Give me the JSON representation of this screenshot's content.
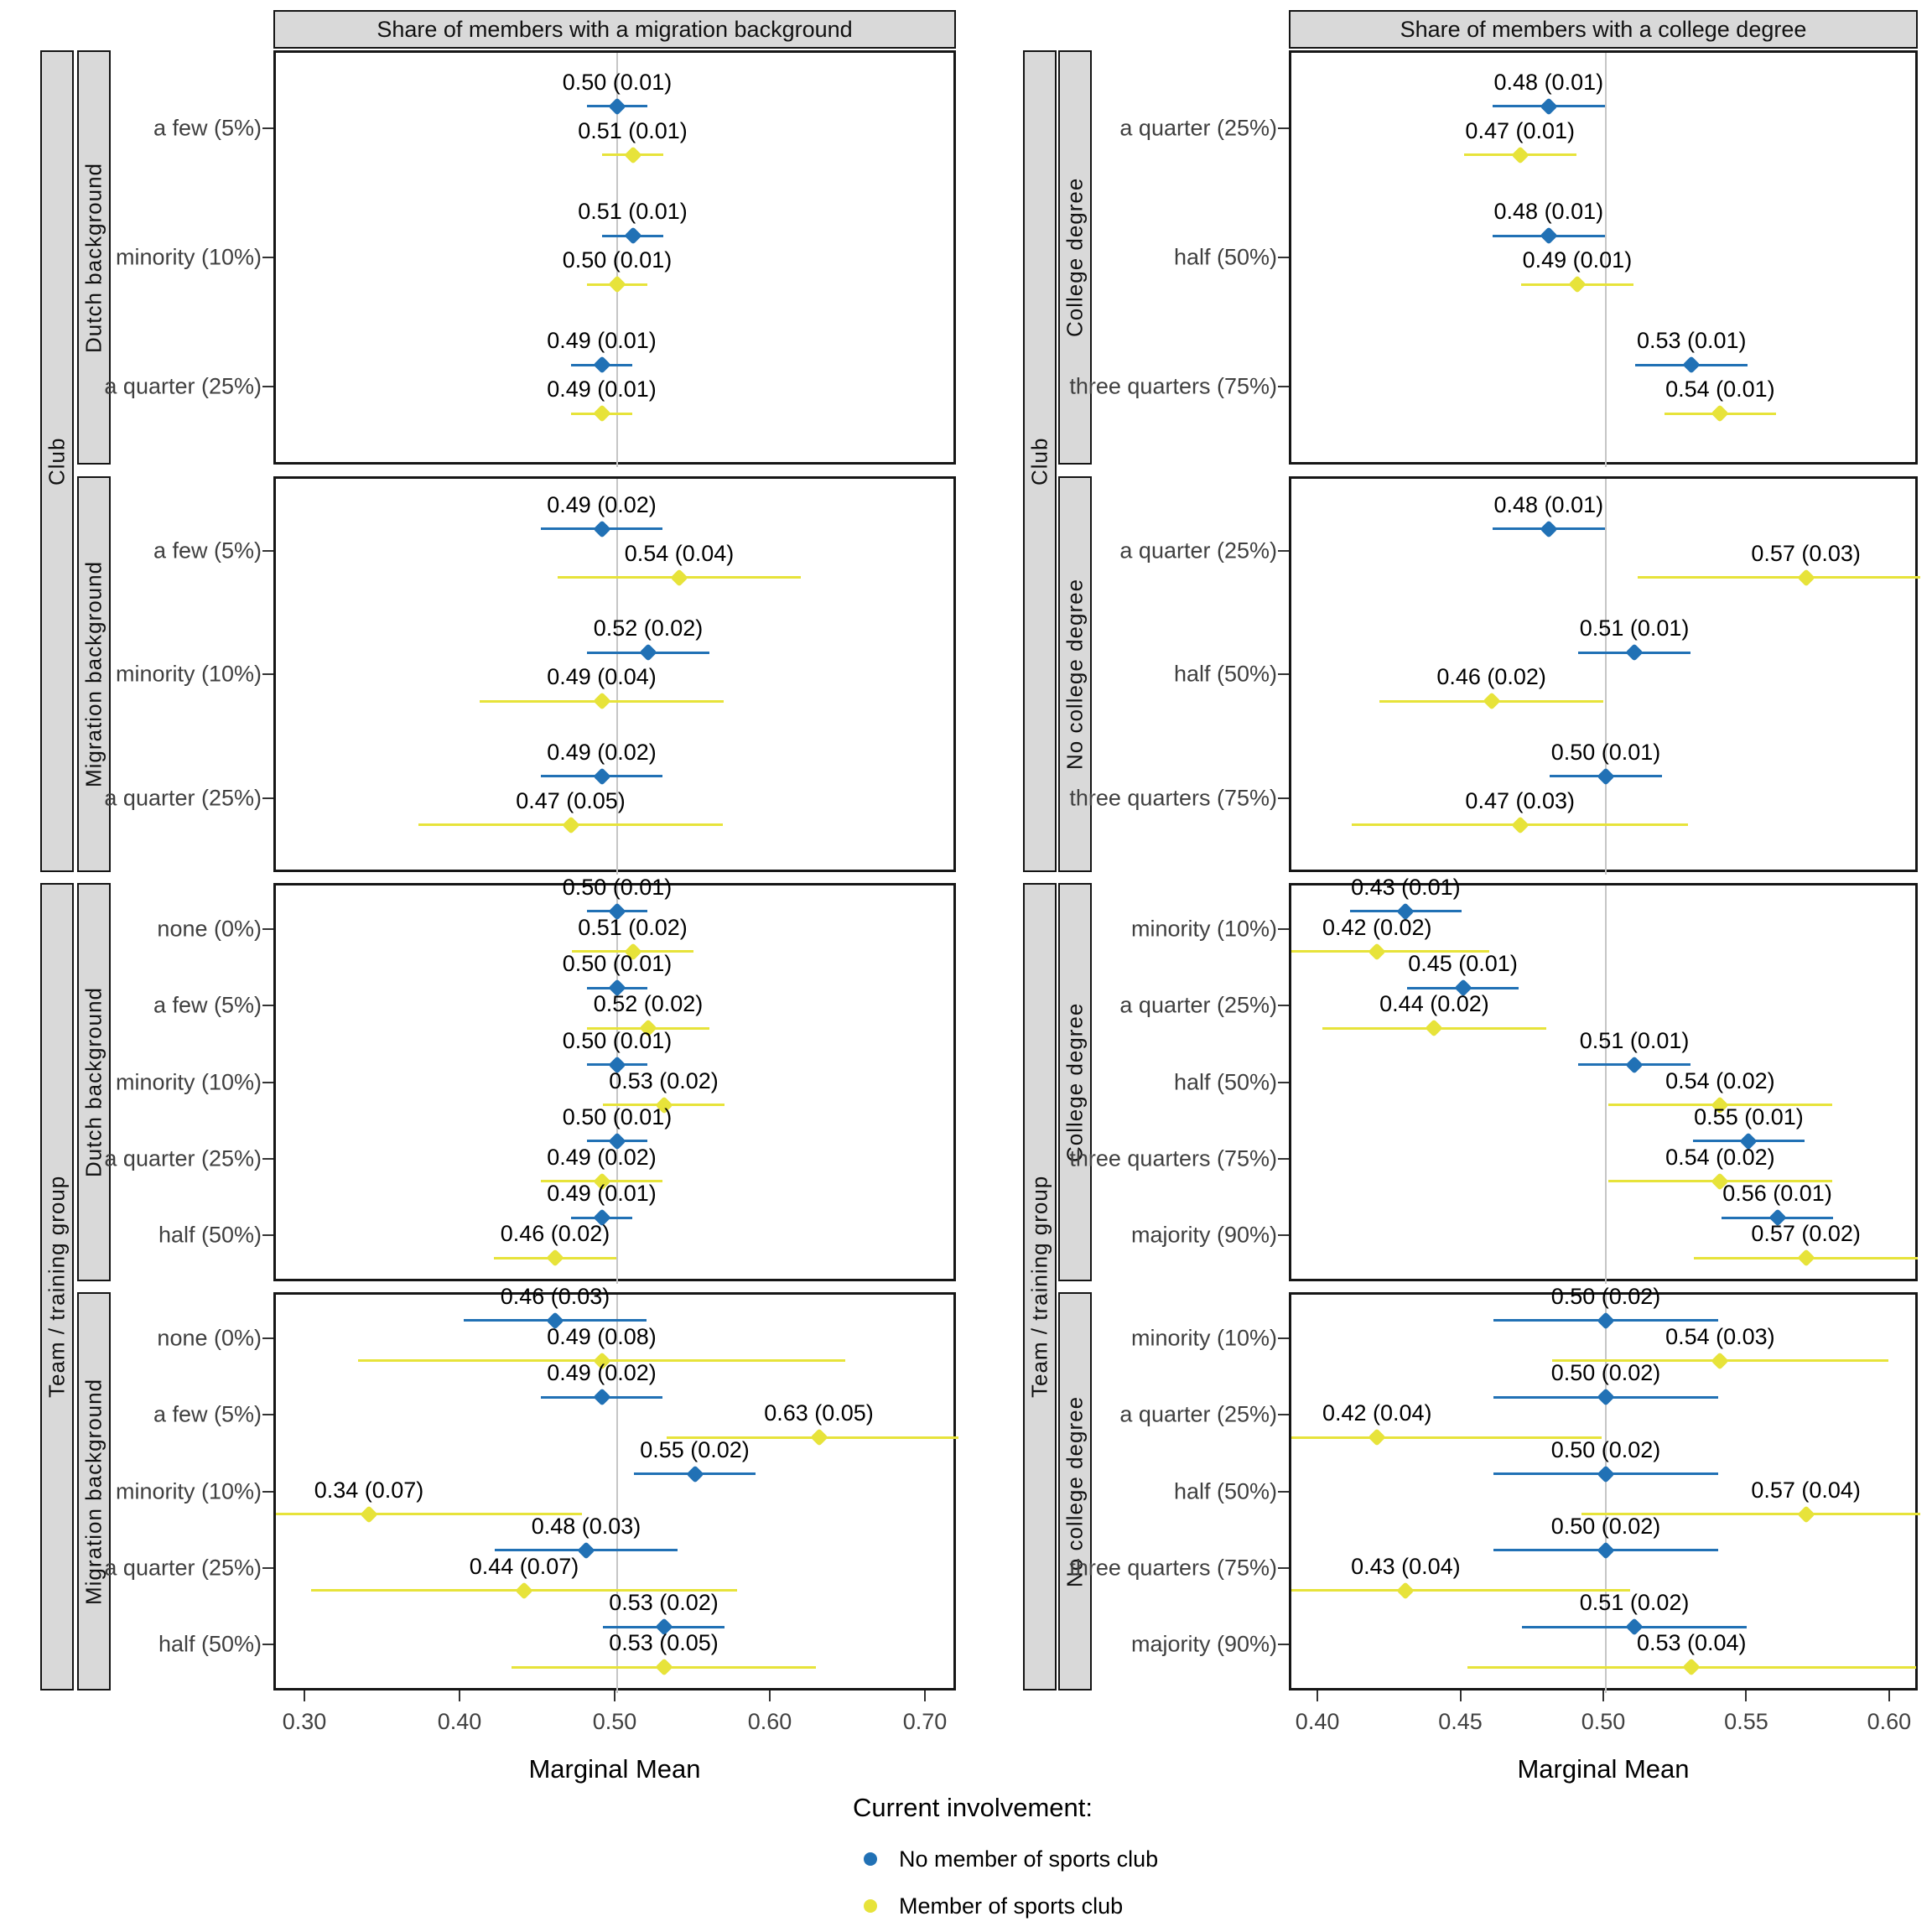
{
  "figure": {
    "xlabel": "Marginal Mean"
  },
  "legend": {
    "title": "Current involvement:",
    "items": [
      {
        "name": "no-member",
        "label": "No member of sports club",
        "color": "#2171b5"
      },
      {
        "name": "member",
        "label": "Member of sports club",
        "color": "#e7e33a"
      }
    ]
  },
  "chart_data": {
    "type": "scatter",
    "subtype": "dodged point-range (marginal means with ~1.96*SE error bars)",
    "xlabel": "Marginal Mean",
    "reference_line_x": 0.5,
    "series_names": [
      "No member of sports club",
      "Member of sports club"
    ],
    "colors": {
      "no_member": "#2171b5",
      "member": "#e7e33a",
      "gridline": "#c6c6c6",
      "strip_fill": "#d9d9d9",
      "panel_border": "#161616"
    },
    "columns": [
      {
        "title": "Share of members with a migration background",
        "xlim": [
          0.28,
          0.72
        ],
        "ticks": [
          "0.30",
          "0.40",
          "0.50",
          "0.60",
          "0.70"
        ]
      },
      {
        "title": "Share of members with a college degree",
        "xlim": [
          0.39,
          0.61
        ],
        "ticks": [
          "0.40",
          "0.45",
          "0.50",
          "0.55",
          "0.60"
        ]
      }
    ],
    "outer_strips": [
      {
        "label": "Club",
        "rows": [
          0,
          1
        ]
      },
      {
        "label": "Team / training group",
        "rows": [
          2,
          3
        ]
      }
    ],
    "panels": [
      {
        "col": 0,
        "row": 0,
        "outer": "Club",
        "inner": "Dutch background",
        "categories": [
          {
            "label": "a few (5%)",
            "no_member": [
              0.5,
              0.01
            ],
            "member": [
              0.51,
              0.01
            ]
          },
          {
            "label": "minority (10%)",
            "no_member": [
              0.51,
              0.01
            ],
            "member": [
              0.5,
              0.01
            ]
          },
          {
            "label": "a quarter (25%)",
            "no_member": [
              0.49,
              0.01
            ],
            "member": [
              0.49,
              0.01
            ]
          }
        ]
      },
      {
        "col": 0,
        "row": 1,
        "outer": "Club",
        "inner": "Migration background",
        "categories": [
          {
            "label": "a few (5%)",
            "no_member": [
              0.49,
              0.02
            ],
            "member": [
              0.54,
              0.04
            ]
          },
          {
            "label": "minority (10%)",
            "no_member": [
              0.52,
              0.02
            ],
            "member": [
              0.49,
              0.04
            ]
          },
          {
            "label": "a quarter (25%)",
            "no_member": [
              0.49,
              0.02
            ],
            "member": [
              0.47,
              0.05
            ]
          }
        ]
      },
      {
        "col": 0,
        "row": 2,
        "outer": "Team / training group",
        "inner": "Dutch background",
        "categories": [
          {
            "label": "none (0%)",
            "no_member": [
              0.5,
              0.01
            ],
            "member": [
              0.51,
              0.02
            ]
          },
          {
            "label": "a few (5%)",
            "no_member": [
              0.5,
              0.01
            ],
            "member": [
              0.52,
              0.02
            ]
          },
          {
            "label": "minority (10%)",
            "no_member": [
              0.5,
              0.01
            ],
            "member": [
              0.53,
              0.02
            ]
          },
          {
            "label": "a quarter (25%)",
            "no_member": [
              0.5,
              0.01
            ],
            "member": [
              0.49,
              0.02
            ]
          },
          {
            "label": "half (50%)",
            "no_member": [
              0.49,
              0.01
            ],
            "member": [
              0.46,
              0.02
            ]
          }
        ]
      },
      {
        "col": 0,
        "row": 3,
        "outer": "Team / training group",
        "inner": "Migration background",
        "categories": [
          {
            "label": "none (0%)",
            "no_member": [
              0.46,
              0.03
            ],
            "member": [
              0.49,
              0.08
            ]
          },
          {
            "label": "a few (5%)",
            "no_member": [
              0.49,
              0.02
            ],
            "member": [
              0.63,
              0.05
            ]
          },
          {
            "label": "minority (10%)",
            "no_member": [
              0.55,
              0.02
            ],
            "member": [
              0.34,
              0.07
            ]
          },
          {
            "label": "a quarter (25%)",
            "no_member": [
              0.48,
              0.03
            ],
            "member": [
              0.44,
              0.07
            ]
          },
          {
            "label": "half (50%)",
            "no_member": [
              0.53,
              0.02
            ],
            "member": [
              0.53,
              0.05
            ]
          }
        ]
      },
      {
        "col": 1,
        "row": 0,
        "outer": "Club",
        "inner": "College degree",
        "categories": [
          {
            "label": "a quarter (25%)",
            "no_member": [
              0.48,
              0.01
            ],
            "member": [
              0.47,
              0.01
            ]
          },
          {
            "label": "half (50%)",
            "no_member": [
              0.48,
              0.01
            ],
            "member": [
              0.49,
              0.01
            ]
          },
          {
            "label": "three quarters (75%)",
            "no_member": [
              0.53,
              0.01
            ],
            "member": [
              0.54,
              0.01
            ]
          }
        ]
      },
      {
        "col": 1,
        "row": 1,
        "outer": "Club",
        "inner": "No college degree",
        "categories": [
          {
            "label": "a quarter (25%)",
            "no_member": [
              0.48,
              0.01
            ],
            "member": [
              0.57,
              0.03
            ]
          },
          {
            "label": "half (50%)",
            "no_member": [
              0.51,
              0.01
            ],
            "member": [
              0.46,
              0.02
            ]
          },
          {
            "label": "three quarters (75%)",
            "no_member": [
              0.5,
              0.01
            ],
            "member": [
              0.47,
              0.03
            ]
          }
        ]
      },
      {
        "col": 1,
        "row": 2,
        "outer": "Team / training group",
        "inner": "College degree",
        "categories": [
          {
            "label": "minority (10%)",
            "no_member": [
              0.43,
              0.01
            ],
            "member": [
              0.42,
              0.02
            ]
          },
          {
            "label": "a quarter (25%)",
            "no_member": [
              0.45,
              0.01
            ],
            "member": [
              0.44,
              0.02
            ]
          },
          {
            "label": "half (50%)",
            "no_member": [
              0.51,
              0.01
            ],
            "member": [
              0.54,
              0.02
            ]
          },
          {
            "label": "three quarters (75%)",
            "no_member": [
              0.55,
              0.01
            ],
            "member": [
              0.54,
              0.02
            ]
          },
          {
            "label": "majority (90%)",
            "no_member": [
              0.56,
              0.01
            ],
            "member": [
              0.57,
              0.02
            ]
          }
        ]
      },
      {
        "col": 1,
        "row": 3,
        "outer": "Team / training group",
        "inner": "No college degree",
        "categories": [
          {
            "label": "minority (10%)",
            "no_member": [
              0.5,
              0.02
            ],
            "member": [
              0.54,
              0.03
            ]
          },
          {
            "label": "a quarter (25%)",
            "no_member": [
              0.5,
              0.02
            ],
            "member": [
              0.42,
              0.04
            ]
          },
          {
            "label": "half (50%)",
            "no_member": [
              0.5,
              0.02
            ],
            "member": [
              0.57,
              0.04
            ]
          },
          {
            "label": "three quarters (75%)",
            "no_member": [
              0.5,
              0.02
            ],
            "member": [
              0.43,
              0.04
            ]
          },
          {
            "label": "majority (90%)",
            "no_member": [
              0.51,
              0.02
            ],
            "member": [
              0.53,
              0.04
            ]
          }
        ]
      }
    ]
  }
}
